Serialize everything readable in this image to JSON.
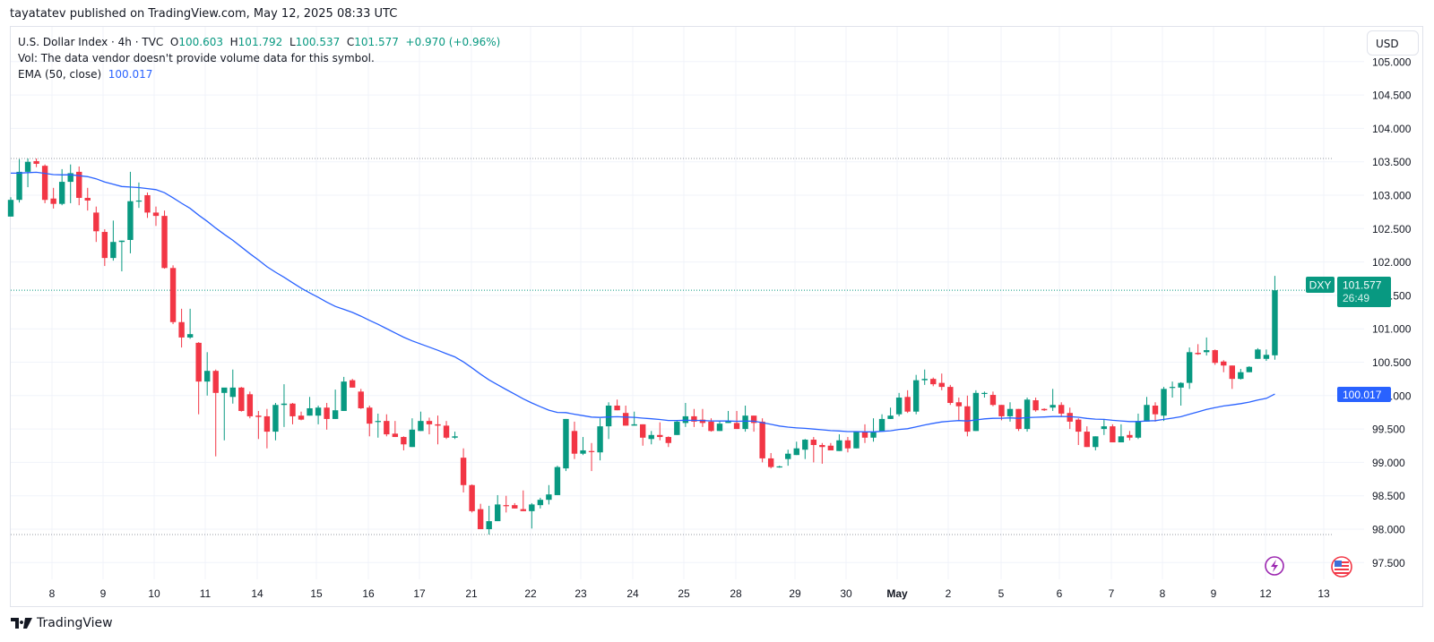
{
  "published": "tayatatev published on TradingView.com, May 12, 2025 08:33 UTC",
  "legend": {
    "symbol": "U.S. Dollar Index · 4h · TVC",
    "o_label": "O",
    "o": "100.603",
    "h_label": "H",
    "h": "101.792",
    "l_label": "L",
    "l": "100.537",
    "c_label": "C",
    "c": "101.577",
    "change": "+0.970 (+0.96%)",
    "vol": "Vol: The data vendor doesn't provide volume data for this symbol.",
    "ema_label": "EMA (50, close)",
    "ema_value": "100.017"
  },
  "currency_button": "USD",
  "footer_brand": "TradingView",
  "price_tags": {
    "symbol": "DXY",
    "last": "101.577",
    "countdown": "26:49",
    "ema": "100.017"
  },
  "colors": {
    "up": "#089981",
    "down": "#f23645",
    "ema": "#2962ff",
    "grid": "#f0f3fa"
  },
  "chart_data": {
    "type": "candlestick",
    "interval": "4h",
    "symbol": "DXY",
    "y_ticks": [
      "97.500",
      "98.000",
      "98.500",
      "99.000",
      "99.500",
      "100.000",
      "100.500",
      "101.000",
      "101.500",
      "102.000",
      "102.500",
      "103.000",
      "103.500",
      "104.000",
      "104.500",
      "105.000"
    ],
    "ylim": [
      97.5,
      105.0
    ],
    "x_ticks": [
      "8",
      "9",
      "10",
      "11",
      "14",
      "15",
      "16",
      "17",
      "21",
      "22",
      "23",
      "24",
      "25",
      "28",
      "29",
      "30",
      "May",
      "2",
      "5",
      "6",
      "7",
      "8",
      "9",
      "12",
      "13"
    ],
    "grid": true,
    "reference_lines": {
      "high": 103.55,
      "low": 97.92,
      "last": 101.577
    },
    "events": [
      "lightning-event",
      "us-flag-event"
    ],
    "ema": {
      "length": 50,
      "source": "close",
      "first_visible_value": 103.33,
      "last_value": 100.017
    },
    "ohlc": [
      [
        102.68,
        102.97,
        102.68,
        102.93
      ],
      [
        102.93,
        103.54,
        102.89,
        103.35
      ],
      [
        103.35,
        103.55,
        103.12,
        103.5
      ],
      [
        103.51,
        103.55,
        103.42,
        103.47
      ],
      [
        103.44,
        103.46,
        102.88,
        102.93
      ],
      [
        102.95,
        103.11,
        102.8,
        102.87
      ],
      [
        102.87,
        103.39,
        102.85,
        103.2
      ],
      [
        103.2,
        103.46,
        102.88,
        103.33
      ],
      [
        103.35,
        103.43,
        102.85,
        102.96
      ],
      [
        102.96,
        103.11,
        102.77,
        102.92
      ],
      [
        102.74,
        102.83,
        102.3,
        102.46
      ],
      [
        102.45,
        102.49,
        101.94,
        102.06
      ],
      [
        102.06,
        102.62,
        102.02,
        102.3
      ],
      [
        102.3,
        102.32,
        101.86,
        102.32
      ],
      [
        102.33,
        103.35,
        102.13,
        102.91
      ],
      [
        102.91,
        103.19,
        102.81,
        102.92
      ],
      [
        103.0,
        103.04,
        102.66,
        102.74
      ],
      [
        102.74,
        102.83,
        102.54,
        102.69
      ],
      [
        102.69,
        102.77,
        101.9,
        101.91
      ],
      [
        101.91,
        101.95,
        101.07,
        101.1
      ],
      [
        101.1,
        101.3,
        100.72,
        100.87
      ],
      [
        100.87,
        101.3,
        100.85,
        100.92
      ],
      [
        100.79,
        100.8,
        99.72,
        100.21
      ],
      [
        100.21,
        100.65,
        100.0,
        100.37
      ],
      [
        100.37,
        100.39,
        99.09,
        100.04
      ],
      [
        100.04,
        100.09,
        99.33,
        100.12
      ],
      [
        99.98,
        100.39,
        99.88,
        100.12
      ],
      [
        100.12,
        100.13,
        99.76,
        99.77
      ],
      [
        100.02,
        100.06,
        99.66,
        99.69
      ],
      [
        99.7,
        99.77,
        99.35,
        99.68
      ],
      [
        99.69,
        99.8,
        99.21,
        99.46
      ],
      [
        99.46,
        99.89,
        99.33,
        99.86
      ],
      [
        99.86,
        100.17,
        99.53,
        99.88
      ],
      [
        99.88,
        99.89,
        99.57,
        99.69
      ],
      [
        99.7,
        99.76,
        99.63,
        99.64
      ],
      [
        99.7,
        99.98,
        99.7,
        99.81
      ],
      [
        99.7,
        99.85,
        99.57,
        99.82
      ],
      [
        99.82,
        99.89,
        99.49,
        99.65
      ],
      [
        99.65,
        100.09,
        99.65,
        99.78
      ],
      [
        99.77,
        100.28,
        99.77,
        100.21
      ],
      [
        100.23,
        100.25,
        100.12,
        100.12
      ],
      [
        100.06,
        100.1,
        99.8,
        99.81
      ],
      [
        99.82,
        99.85,
        99.39,
        99.58
      ],
      [
        99.61,
        99.73,
        99.37,
        99.62
      ],
      [
        99.62,
        99.72,
        99.39,
        99.42
      ],
      [
        99.43,
        99.62,
        99.38,
        99.38
      ],
      [
        99.38,
        99.39,
        99.18,
        99.27
      ],
      [
        99.23,
        99.66,
        99.23,
        99.49
      ],
      [
        99.47,
        99.76,
        99.47,
        99.62
      ],
      [
        99.62,
        99.67,
        99.42,
        99.57
      ],
      [
        99.57,
        99.7,
        99.27,
        99.55
      ],
      [
        99.55,
        99.62,
        99.35,
        99.37
      ],
      [
        99.37,
        99.46,
        99.35,
        99.39
      ],
      [
        99.07,
        99.21,
        98.55,
        98.66
      ],
      [
        98.66,
        98.67,
        98.25,
        98.27
      ],
      [
        98.3,
        98.38,
        98.0,
        98.0
      ],
      [
        98.0,
        98.35,
        97.92,
        98.12
      ],
      [
        98.12,
        98.51,
        98.12,
        98.37
      ],
      [
        98.36,
        98.5,
        98.25,
        98.35
      ],
      [
        98.36,
        98.39,
        98.31,
        98.31
      ],
      [
        98.3,
        98.58,
        98.27,
        98.27
      ],
      [
        98.27,
        98.39,
        98.01,
        98.37
      ],
      [
        98.36,
        98.47,
        98.31,
        98.44
      ],
      [
        98.44,
        98.66,
        98.37,
        98.52
      ],
      [
        98.51,
        98.95,
        98.51,
        98.93
      ],
      [
        98.91,
        99.65,
        98.87,
        99.65
      ],
      [
        99.47,
        99.61,
        99.05,
        99.13
      ],
      [
        99.13,
        99.38,
        99.11,
        99.18
      ],
      [
        99.17,
        99.29,
        98.87,
        99.16
      ],
      [
        99.15,
        99.66,
        99.03,
        99.54
      ],
      [
        99.54,
        99.9,
        99.35,
        99.85
      ],
      [
        99.85,
        99.94,
        99.78,
        99.78
      ],
      [
        99.74,
        99.85,
        99.55,
        99.55
      ],
      [
        99.55,
        99.76,
        99.55,
        99.57
      ],
      [
        99.57,
        99.57,
        99.25,
        99.37
      ],
      [
        99.35,
        99.47,
        99.27,
        99.41
      ],
      [
        99.41,
        99.6,
        99.33,
        99.38
      ],
      [
        99.38,
        99.39,
        99.23,
        99.29
      ],
      [
        99.41,
        99.63,
        99.41,
        99.61
      ],
      [
        99.59,
        99.89,
        99.53,
        99.69
      ],
      [
        99.69,
        99.8,
        99.53,
        99.61
      ],
      [
        99.64,
        99.8,
        99.53,
        99.59
      ],
      [
        99.61,
        99.66,
        99.46,
        99.47
      ],
      [
        99.47,
        99.62,
        99.47,
        99.58
      ],
      [
        99.59,
        99.77,
        99.59,
        99.62
      ],
      [
        99.59,
        99.77,
        99.5,
        99.5
      ],
      [
        99.5,
        99.85,
        99.46,
        99.7
      ],
      [
        99.7,
        99.7,
        99.46,
        99.59
      ],
      [
        99.61,
        99.66,
        99.0,
        99.06
      ],
      [
        99.06,
        99.14,
        98.91,
        98.93
      ],
      [
        98.93,
        98.95,
        98.92,
        98.94
      ],
      [
        99.05,
        99.19,
        98.95,
        99.13
      ],
      [
        99.11,
        99.31,
        99.11,
        99.21
      ],
      [
        99.19,
        99.35,
        99.05,
        99.34
      ],
      [
        99.34,
        99.38,
        99.0,
        99.26
      ],
      [
        99.26,
        99.29,
        98.98,
        99.23
      ],
      [
        99.25,
        99.29,
        99.18,
        99.18
      ],
      [
        99.17,
        99.42,
        99.17,
        99.33
      ],
      [
        99.33,
        99.38,
        99.15,
        99.21
      ],
      [
        99.21,
        99.46,
        99.21,
        99.46
      ],
      [
        99.46,
        99.57,
        99.29,
        99.37
      ],
      [
        99.37,
        99.66,
        99.31,
        99.46
      ],
      [
        99.46,
        99.72,
        99.46,
        99.65
      ],
      [
        99.65,
        99.82,
        99.65,
        99.7
      ],
      [
        99.72,
        100.04,
        99.69,
        99.97
      ],
      [
        99.98,
        100.08,
        99.74,
        99.76
      ],
      [
        99.76,
        100.31,
        99.72,
        100.23
      ],
      [
        100.23,
        100.39,
        100.16,
        100.25
      ],
      [
        100.25,
        100.27,
        100.14,
        100.17
      ],
      [
        100.19,
        100.33,
        100.08,
        100.13
      ],
      [
        100.13,
        100.16,
        99.86,
        99.89
      ],
      [
        99.9,
        99.97,
        99.63,
        99.84
      ],
      [
        99.84,
        100.0,
        99.39,
        99.46
      ],
      [
        99.47,
        100.08,
        99.47,
        100.04
      ],
      [
        100.03,
        100.06,
        99.97,
        100.04
      ],
      [
        100.01,
        100.06,
        99.84,
        99.86
      ],
      [
        99.86,
        99.86,
        99.63,
        99.69
      ],
      [
        99.69,
        99.9,
        99.61,
        99.8
      ],
      [
        99.8,
        99.8,
        99.47,
        99.5
      ],
      [
        99.5,
        99.97,
        99.46,
        99.94
      ],
      [
        99.93,
        99.97,
        99.76,
        99.78
      ],
      [
        99.8,
        99.81,
        99.77,
        99.78
      ],
      [
        99.82,
        100.1,
        99.77,
        99.86
      ],
      [
        99.86,
        99.9,
        99.69,
        99.73
      ],
      [
        99.74,
        99.82,
        99.5,
        99.61
      ],
      [
        99.64,
        99.66,
        99.26,
        99.46
      ],
      [
        99.46,
        99.54,
        99.23,
        99.23
      ],
      [
        99.23,
        99.39,
        99.18,
        99.39
      ],
      [
        99.5,
        99.65,
        99.41,
        99.54
      ],
      [
        99.54,
        99.57,
        99.3,
        99.3
      ],
      [
        99.3,
        99.57,
        99.3,
        99.39
      ],
      [
        99.41,
        99.47,
        99.33,
        99.37
      ],
      [
        99.37,
        99.73,
        99.35,
        99.62
      ],
      [
        99.61,
        99.98,
        99.61,
        99.86
      ],
      [
        99.85,
        99.9,
        99.61,
        99.72
      ],
      [
        99.7,
        100.13,
        99.62,
        100.1
      ],
      [
        100.12,
        100.21,
        99.97,
        100.13
      ],
      [
        100.12,
        100.2,
        99.85,
        100.19
      ],
      [
        100.19,
        100.72,
        100.1,
        100.65
      ],
      [
        100.64,
        100.77,
        100.61,
        100.62
      ],
      [
        100.65,
        100.87,
        100.6,
        100.68
      ],
      [
        100.68,
        100.69,
        100.46,
        100.49
      ],
      [
        100.51,
        100.53,
        100.35,
        100.45
      ],
      [
        100.45,
        100.45,
        100.1,
        100.25
      ],
      [
        100.25,
        100.4,
        100.24,
        100.35
      ],
      [
        100.35,
        100.44,
        100.35,
        100.43
      ],
      [
        100.55,
        100.71,
        100.55,
        100.69
      ],
      [
        100.55,
        100.69,
        100.52,
        100.61
      ],
      [
        100.603,
        101.792,
        100.537,
        101.577
      ]
    ]
  }
}
